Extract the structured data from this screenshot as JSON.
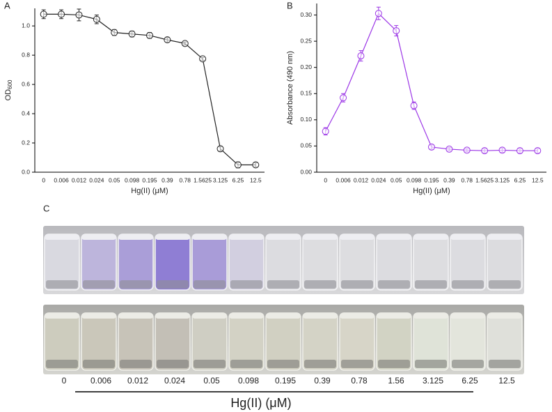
{
  "chart_data": [
    {
      "type": "line",
      "label": "A",
      "x_label": "Hg(II) (μM)",
      "y_label": "OD",
      "y_label_subscript": "600",
      "categories": [
        "0",
        "0.006",
        "0.012",
        "0.024",
        "0.05",
        "0.098",
        "0.195",
        "0.39",
        "0.78",
        "1.5625",
        "3.125",
        "6.25",
        "12.5"
      ],
      "series": [
        {
          "color": "#222222",
          "values": [
            1.08,
            1.08,
            1.075,
            1.045,
            0.955,
            0.945,
            0.935,
            0.905,
            0.88,
            0.775,
            0.16,
            0.05,
            0.05
          ],
          "errors": [
            0.03,
            0.03,
            0.04,
            0.03,
            0.02,
            0.02,
            0.02,
            0.015,
            0.01,
            0.01,
            0.015,
            0.02,
            0.015
          ]
        }
      ],
      "ylim": [
        0,
        1.12
      ],
      "yticks": [
        {
          "value": 0,
          "label": "0.0"
        },
        0.2,
        0.4,
        0.6,
        0.8,
        {
          "value": 1,
          "label": "1.0"
        }
      ]
    },
    {
      "type": "line",
      "label": "B",
      "x_label": "Hg(II) (μM)",
      "y_label": "Absorbance (490 nm)",
      "categories": [
        "0",
        "0.006",
        "0.012",
        "0.024",
        "0.05",
        "0.098",
        "0.195",
        "0.39",
        "0.78",
        "1.5625",
        "3.125",
        "6.25",
        "12.5"
      ],
      "series": [
        {
          "color": "#9b35e6",
          "values": [
            0.078,
            0.142,
            0.222,
            0.303,
            0.27,
            0.127,
            0.048,
            0.044,
            0.042,
            0.041,
            0.042,
            0.041,
            0.041
          ],
          "errors": [
            0.007,
            0.008,
            0.01,
            0.012,
            0.01,
            0.007,
            0.004,
            0.003,
            0.003,
            0.004,
            0.004,
            0.004,
            0.004
          ]
        }
      ],
      "ylim": [
        0,
        0.322
      ],
      "yticks": [
        {
          "value": 0,
          "label": "0.00"
        },
        {
          "value": 0.05,
          "label": "0.05"
        },
        {
          "value": 0.1,
          "label": "0.10"
        },
        {
          "value": 0.15,
          "label": "0.15"
        },
        {
          "value": 0.2,
          "label": "0.20"
        },
        {
          "value": 0.25,
          "label": "0.25"
        },
        {
          "value": 0.3,
          "label": "0.30"
        }
      ]
    }
  ],
  "photo": {
    "label": "C",
    "concentrations": [
      "0",
      "0.006",
      "0.012",
      "0.024",
      "0.05",
      "0.098",
      "0.195",
      "0.39",
      "0.78",
      "1.56",
      "3.125",
      "6.25",
      "12.5"
    ],
    "x_label": "Hg(II) (μM)"
  }
}
